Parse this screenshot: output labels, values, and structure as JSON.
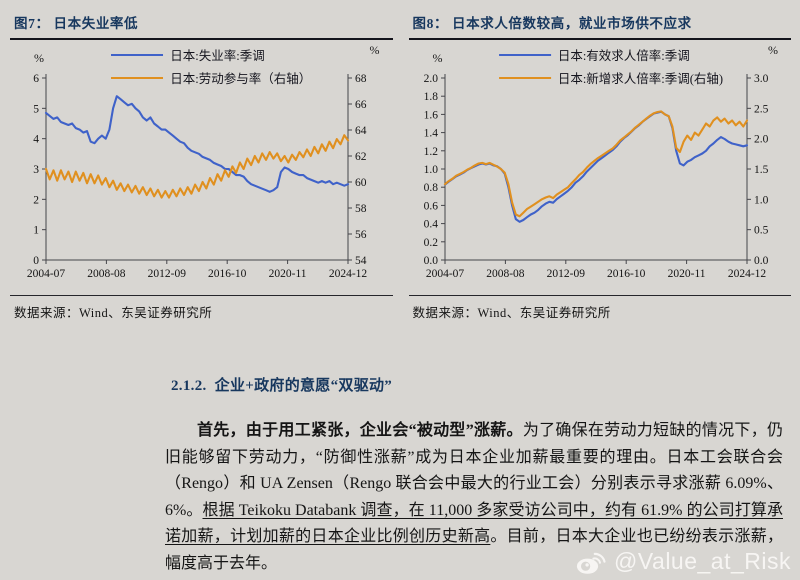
{
  "section": {
    "heading": "2.1.2.  企业+政府的意愿“双驱动”"
  },
  "paragraph": {
    "segments": [
      {
        "text": "首先，由于用工紧张，企业会“被动型”涨薪。",
        "bold": true
      },
      {
        "text": "为了确保在劳动力短缺的情况下，仍旧能够留下劳动力，“防御性涨薪”成为日本企业加薪最重要的理由。日本工会联合会（Rengo）和 UA Zensen（Rengo 联合会中最大的行业工会）分别表示寻求涨薪 6.09%、6%。"
      },
      {
        "text": "根据 Teikoku Databank 调查，在 11,000 多家受访公司中，约有 61.9% 的公司打算承诺加薪，计划加薪的日本企业比例创历史新高",
        "underline": true
      },
      {
        "text": "。目前，日本大企业也已纷纷表示涨薪，幅度高于去年。"
      }
    ]
  },
  "watermark": {
    "icon": "weibo-icon",
    "text": "@Value_at_Risk"
  },
  "colors": {
    "accent_navy": "#17375e",
    "line_blue": "#3f62c9",
    "line_orange": "#e0901f",
    "page_bg": "#d8d6d2"
  },
  "chart_data": [
    {
      "type": "line",
      "title": "图7： 日本失业率低",
      "unit_left": "%",
      "unit_right": "%",
      "legend": [
        {
          "label": "日本:失业率:季调",
          "color": "#3f62c9"
        },
        {
          "label": "日本:劳动参与率（右轴）",
          "color": "#e0901f"
        }
      ],
      "x_labels": [
        "2004-07",
        "2008-08",
        "2012-09",
        "2016-10",
        "2020-11",
        "2024-12"
      ],
      "left_axis": {
        "min": 0,
        "max": 6,
        "ticks": [
          "6",
          "5",
          "4",
          "3",
          "2",
          "1",
          "0"
        ]
      },
      "right_axis": {
        "min": 54,
        "max": 68,
        "ticks": [
          "68",
          "66",
          "64",
          "62",
          "60",
          "58",
          "56",
          "54"
        ]
      },
      "series": [
        {
          "name": "日本:失业率:季调",
          "axis": "left",
          "color": "#3f62c9",
          "values": [
            4.85,
            4.75,
            4.65,
            4.7,
            4.55,
            4.5,
            4.45,
            4.5,
            4.35,
            4.3,
            4.2,
            4.25,
            3.9,
            3.85,
            4.0,
            4.1,
            4.0,
            4.3,
            5.0,
            5.4,
            5.3,
            5.2,
            5.1,
            5.15,
            5.0,
            4.9,
            4.7,
            4.6,
            4.7,
            4.5,
            4.4,
            4.3,
            4.3,
            4.2,
            4.1,
            4.0,
            3.9,
            3.85,
            3.7,
            3.6,
            3.55,
            3.5,
            3.4,
            3.35,
            3.3,
            3.2,
            3.15,
            3.1,
            3.0,
            3.0,
            2.9,
            2.8,
            2.8,
            2.75,
            2.6,
            2.5,
            2.45,
            2.4,
            2.35,
            2.3,
            2.25,
            2.3,
            2.4,
            2.9,
            3.05,
            3.0,
            2.9,
            2.85,
            2.8,
            2.8,
            2.7,
            2.65,
            2.6,
            2.55,
            2.6,
            2.55,
            2.6,
            2.5,
            2.55,
            2.5,
            2.45,
            2.5
          ]
        },
        {
          "name": "日本:劳动参与率（右轴）",
          "axis": "right",
          "color": "#e0901f",
          "values": [
            61.0,
            60.2,
            60.9,
            60.1,
            60.9,
            60.2,
            60.8,
            60.0,
            60.8,
            60.1,
            60.7,
            59.9,
            60.6,
            59.9,
            60.5,
            59.8,
            60.3,
            59.6,
            60.1,
            59.4,
            59.9,
            59.3,
            59.8,
            59.2,
            59.7,
            59.1,
            59.6,
            59.0,
            59.5,
            58.9,
            59.4,
            58.8,
            59.3,
            58.8,
            59.4,
            58.9,
            59.5,
            59.0,
            59.6,
            59.1,
            59.8,
            59.3,
            60.0,
            59.5,
            60.3,
            59.8,
            60.6,
            60.1,
            60.9,
            60.4,
            61.2,
            60.7,
            61.5,
            61.0,
            61.8,
            61.3,
            62.0,
            61.5,
            62.2,
            61.7,
            62.3,
            61.8,
            62.2,
            61.6,
            62.0,
            61.5,
            62.1,
            61.7,
            62.3,
            61.9,
            62.5,
            62.0,
            62.7,
            62.2,
            62.9,
            62.4,
            63.1,
            62.6,
            63.3,
            62.9,
            63.6,
            63.2
          ]
        }
      ],
      "source": "数据来源：Wind、东吴证券研究所"
    },
    {
      "type": "line",
      "title": "图8： 日本求人倍数较高，就业市场供不应求",
      "unit_left": "%",
      "unit_right": "%",
      "legend": [
        {
          "label": "日本:有效求人倍率:季调",
          "color": "#3f62c9"
        },
        {
          "label": "日本:新增求人倍率:季调(右轴)",
          "color": "#e0901f"
        }
      ],
      "x_labels": [
        "2004-07",
        "2008-08",
        "2012-09",
        "2016-10",
        "2020-11",
        "2024-12"
      ],
      "left_axis": {
        "min": 0,
        "max": 2,
        "ticks": [
          "2.0",
          "1.8",
          "1.6",
          "1.4",
          "1.2",
          "1.0",
          "0.8",
          "0.6",
          "0.4",
          "0.2",
          "0.0"
        ]
      },
      "right_axis": {
        "min": 0,
        "max": 3,
        "ticks": [
          "3.0",
          "2.5",
          "2.0",
          "1.5",
          "1.0",
          "0.5",
          "0.0"
        ]
      },
      "series": [
        {
          "name": "日本:有效求人倍率:季调",
          "axis": "left",
          "color": "#3f62c9",
          "values": [
            0.83,
            0.86,
            0.89,
            0.92,
            0.94,
            0.96,
            0.99,
            1.01,
            1.03,
            1.05,
            1.06,
            1.05,
            1.06,
            1.04,
            1.03,
            1.0,
            0.95,
            0.8,
            0.6,
            0.45,
            0.42,
            0.44,
            0.47,
            0.5,
            0.52,
            0.55,
            0.59,
            0.62,
            0.64,
            0.63,
            0.67,
            0.7,
            0.73,
            0.76,
            0.8,
            0.85,
            0.88,
            0.92,
            0.97,
            1.01,
            1.05,
            1.09,
            1.12,
            1.15,
            1.18,
            1.21,
            1.25,
            1.3,
            1.34,
            1.37,
            1.41,
            1.45,
            1.48,
            1.52,
            1.55,
            1.58,
            1.61,
            1.62,
            1.63,
            1.6,
            1.58,
            1.45,
            1.2,
            1.06,
            1.04,
            1.08,
            1.1,
            1.13,
            1.15,
            1.17,
            1.2,
            1.25,
            1.28,
            1.32,
            1.35,
            1.33,
            1.3,
            1.28,
            1.27,
            1.26,
            1.25,
            1.26
          ]
        },
        {
          "name": "日本:新增求人倍率:季调(右轴)",
          "axis": "right",
          "color": "#e0901f",
          "values": [
            1.25,
            1.3,
            1.34,
            1.39,
            1.42,
            1.45,
            1.49,
            1.52,
            1.56,
            1.59,
            1.6,
            1.58,
            1.6,
            1.57,
            1.54,
            1.5,
            1.44,
            1.25,
            0.95,
            0.75,
            0.72,
            0.78,
            0.84,
            0.88,
            0.92,
            0.96,
            1.0,
            1.03,
            1.05,
            1.02,
            1.08,
            1.12,
            1.16,
            1.2,
            1.27,
            1.33,
            1.4,
            1.45,
            1.52,
            1.58,
            1.63,
            1.68,
            1.72,
            1.76,
            1.8,
            1.84,
            1.9,
            1.97,
            2.02,
            2.07,
            2.12,
            2.18,
            2.23,
            2.28,
            2.33,
            2.38,
            2.42,
            2.44,
            2.45,
            2.4,
            2.37,
            2.2,
            1.85,
            1.78,
            1.95,
            2.05,
            1.98,
            2.1,
            2.05,
            2.15,
            2.25,
            2.2,
            2.3,
            2.35,
            2.28,
            2.33,
            2.25,
            2.3,
            2.22,
            2.28,
            2.2,
            2.3
          ]
        }
      ],
      "source": "数据来源：Wind、东吴证券研究所"
    }
  ]
}
